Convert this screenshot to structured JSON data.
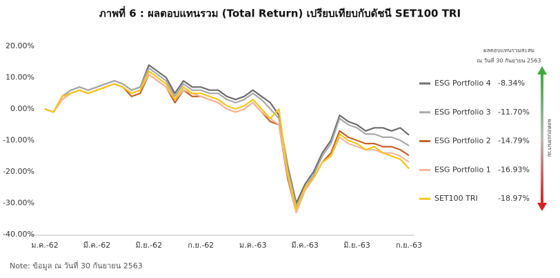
{
  "chart_data": {
    "type": "line",
    "title": "ภาพที่ 6 : ผลตอบแทนรวม (Total Return) เปรียบเทียบกับดัชนี SET100 TRI",
    "note": "Note: ข้อมูล ณ วันที่ 30 กันยายน 2563",
    "legend_title": "ผลตอบแทนรวมสะสม",
    "legend_subtitle": "ณ วันที่ 30 กันยายน 2563",
    "arrow_label": "ผลตอบแทนรวม",
    "categories": [
      "ม.ค.-62",
      null,
      null,
      null,
      null,
      null,
      "มี.ค.-62",
      null,
      null,
      null,
      null,
      null,
      "มิ.ย.-62",
      null,
      null,
      null,
      null,
      null,
      "ก.ย.-62",
      null,
      null,
      null,
      null,
      null,
      "ม.ค.-63",
      null,
      null,
      null,
      null,
      null,
      "มี.ค.-63",
      null,
      null,
      null,
      null,
      null,
      "มิ.ย.-63",
      null,
      null,
      null,
      null,
      null,
      "ก.ย.-63"
    ],
    "ylim": [
      -40,
      20
    ],
    "yticks": [
      {
        "value": 20,
        "label": "20.00%"
      },
      {
        "value": 10,
        "label": "10.00%"
      },
      {
        "value": 0,
        "label": "0.00%"
      },
      {
        "value": -10,
        "label": "-10.00%"
      },
      {
        "value": -20,
        "label": "-20.00%"
      },
      {
        "value": -30,
        "label": "-30.00%"
      },
      {
        "value": -40,
        "label": "-40.00%"
      }
    ],
    "series": [
      {
        "name": "ESG Portfolio 4",
        "color": "#6d6d6d",
        "legend_value": {
          "value": -8.34,
          "label": "-8.34%"
        },
        "values": [
          0,
          -1,
          4,
          6,
          7,
          6,
          7,
          8,
          9,
          8,
          6,
          7,
          14,
          12,
          10,
          5,
          9,
          7,
          7,
          6,
          6,
          4,
          3,
          4,
          6,
          4,
          2,
          -2,
          -18,
          -30,
          -24,
          -20,
          -14,
          -10,
          -2,
          -4,
          -5,
          -7,
          -6,
          -6,
          -7,
          -6,
          -8.3
        ]
      },
      {
        "name": "ESG Portfolio 3",
        "color": "#a9a9a9",
        "legend_value": {
          "value": -11.7,
          "label": "-11.70%"
        },
        "values": [
          0,
          -1,
          4,
          6,
          7,
          6,
          7,
          8,
          9,
          8,
          6,
          7,
          13,
          11,
          9,
          4,
          8,
          6,
          6,
          5,
          5,
          3,
          2,
          3,
          5,
          3,
          0,
          -3,
          -19,
          -31,
          -25,
          -21,
          -15,
          -11,
          -3,
          -5,
          -6,
          -8,
          -8,
          -9,
          -9,
          -10,
          -11.7
        ]
      },
      {
        "name": "ESG Portfolio 2",
        "color": "#c0622a",
        "legend_value": {
          "value": -14.79,
          "label": "-14.79%"
        },
        "values": [
          0,
          -1,
          3,
          5,
          6,
          5,
          6,
          7,
          8,
          7,
          4,
          5,
          11,
          9,
          7,
          2,
          6,
          4,
          4,
          3,
          2,
          0,
          -1,
          0,
          2,
          -1,
          -4,
          -5,
          -22,
          -33,
          -26,
          -22,
          -17,
          -14,
          -7,
          -9,
          -10,
          -11,
          -11,
          -12,
          -12,
          -13,
          -14.8
        ]
      },
      {
        "name": "ESG Portfolio 1",
        "color": "#f2b89a",
        "legend_value": {
          "value": -16.93,
          "label": "-16.93%"
        },
        "values": [
          0,
          -1,
          3,
          5,
          6,
          5,
          6,
          7,
          8,
          7,
          5,
          6,
          11,
          9,
          7,
          3,
          6,
          5,
          4,
          3,
          2,
          0,
          -1,
          0,
          2,
          -1,
          -3,
          -5,
          -21,
          -33,
          -26,
          -22,
          -17,
          -15,
          -9,
          -11,
          -12,
          -13,
          -13,
          -14,
          -14,
          -15,
          -16.9
        ]
      },
      {
        "name": "SET100 TRI",
        "color": "#f5c518",
        "legend_value": {
          "value": -18.97,
          "label": "-18.97%"
        },
        "values": [
          0,
          -1,
          4,
          5,
          6,
          5,
          6,
          7,
          8,
          7,
          5,
          6,
          12,
          10,
          8,
          3,
          7,
          5,
          5,
          4,
          3,
          1,
          0,
          1,
          3,
          0,
          -3,
          0,
          -20,
          -32,
          -25,
          -22,
          -17,
          -15,
          -8,
          -10,
          -11,
          -13,
          -12,
          -14,
          -15,
          -16,
          -19
        ]
      }
    ]
  }
}
